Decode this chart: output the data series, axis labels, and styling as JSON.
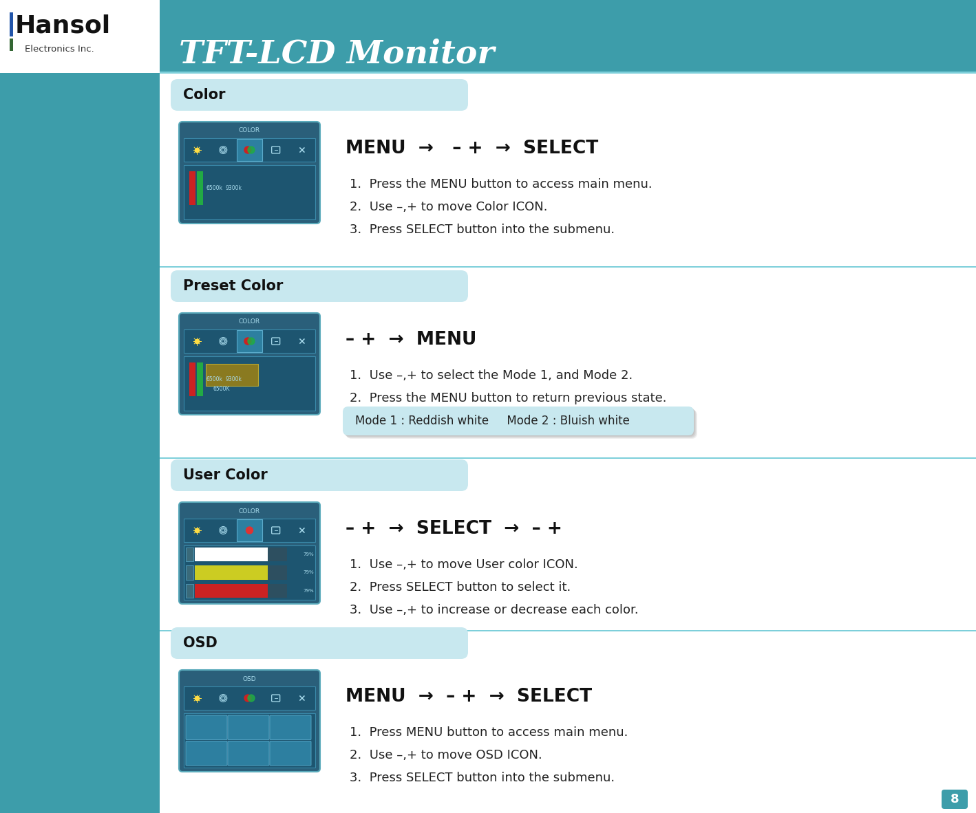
{
  "header_bg": "#3d9daa",
  "header_left_bg": "#ffffff",
  "header_title": "TFT-LCD Monitor",
  "page_bg": "#3d9daa",
  "content_bg": "#ffffff",
  "section_tab_bg": "#c8e8ef",
  "screen_bg": "#1a6080",
  "page_number": "8",
  "sections": [
    {
      "title": "Color",
      "nav_text": "MENU  →   – +  →  SELECT",
      "instructions": [
        "1.  Press the MENU button to access main menu.",
        "2.  Use –,+ to move Color ICON.",
        "3.  Press SELECT button into the submenu."
      ],
      "mode_box": null
    },
    {
      "title": "Preset Color",
      "nav_text": "– +  →  MENU",
      "instructions": [
        "1.  Use –,+ to select the Mode 1, and Mode 2.",
        "2.  Press the MENU button to return previous state."
      ],
      "mode_box": "Mode 1 : Reddish white     Mode 2 : Bluish white"
    },
    {
      "title": "User Color",
      "nav_text": "– +  →  SELECT  →  – +",
      "instructions": [
        "1.  Use –,+ to move User color ICON.",
        "2.  Press SELECT button to select it.",
        "3.  Use –,+ to increase or decrease each color."
      ],
      "mode_box": null
    },
    {
      "title": "OSD",
      "nav_text": "MENU  →  – +  →  SELECT",
      "instructions": [
        "1.  Press MENU button to access main menu.",
        "2.  Use –,+ to move OSD ICON.",
        "3.  Press SELECT button into the submenu."
      ],
      "mode_box": null
    }
  ]
}
